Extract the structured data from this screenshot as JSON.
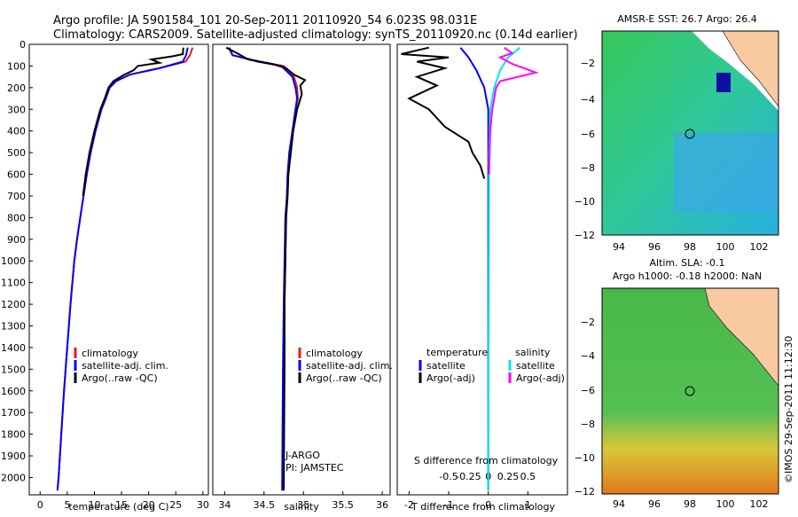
{
  "header": {
    "line1": "Argo profile: JA 5901584_101 20-Sep-2011 20110920_54 6.023S 98.031E",
    "line2": "Climatology: CARS2009. Satellite-adjusted climatology: synTS_20110920.nc (0.14d earlier)"
  },
  "map_top": {
    "title": "AMSR-E SST: 26.7  Argo: 26.4"
  },
  "map_bottom": {
    "title1": "Altim. SLA: -0.1",
    "title2": "Argo h1000: -0.18 h2000: NaN"
  },
  "credit": "©IMOS 29-Sep-2011 11:12:30",
  "colors": {
    "climatology": "#e41a1c",
    "satellite": "#0000ff",
    "argo": "#000000",
    "sat_s": "#00e5ee",
    "argo_s": "#ff00ff"
  },
  "chart_data": [
    {
      "type": "line",
      "xlabel": "temperature (deg C)",
      "ylabel": "",
      "xlim": [
        -2,
        31
      ],
      "ylim": [
        2080,
        0
      ],
      "xticks": [
        "0",
        "5",
        "10",
        "15",
        "20",
        "25",
        "30"
      ],
      "yticks": [
        "0",
        "100",
        "200",
        "300",
        "400",
        "500",
        "600",
        "700",
        "800",
        "900",
        "1000",
        "1100",
        "1200",
        "1300",
        "1400",
        "1500",
        "1600",
        "1700",
        "1800",
        "1900",
        "2000"
      ],
      "legend": [
        "climatology",
        "satellite-adj. clim.",
        "Argo(..raw -QC)"
      ],
      "series": [
        {
          "name": "climatology",
          "color": "#e41a1c",
          "points": [
            [
              28.1,
              15
            ],
            [
              27.6,
              50
            ],
            [
              26.8,
              80
            ],
            [
              22,
              110
            ],
            [
              16.5,
              140
            ],
            [
              14,
              170
            ],
            [
              12.8,
              200
            ],
            [
              12.1,
              250
            ],
            [
              11.3,
              300
            ],
            [
              10.2,
              400
            ],
            [
              9.3,
              500
            ],
            [
              8.6,
              600
            ],
            [
              8.0,
              700
            ],
            [
              7.4,
              800
            ],
            [
              6.8,
              900
            ],
            [
              6.3,
              1000
            ],
            [
              5.6,
              1200
            ],
            [
              5.0,
              1400
            ],
            [
              4.4,
              1600
            ],
            [
              3.9,
              1800
            ],
            [
              3.4,
              2000
            ],
            [
              3.2,
              2060
            ]
          ]
        },
        {
          "name": "satellite-adj. clim.",
          "color": "#0000ff",
          "points": [
            [
              27.2,
              15
            ],
            [
              26.9,
              50
            ],
            [
              26.3,
              80
            ],
            [
              22,
              110
            ],
            [
              16.5,
              140
            ],
            [
              14,
              170
            ],
            [
              12.8,
              200
            ],
            [
              12.1,
              250
            ],
            [
              11.3,
              300
            ],
            [
              10.2,
              400
            ],
            [
              9.3,
              500
            ],
            [
              8.6,
              600
            ],
            [
              8.0,
              700
            ],
            [
              7.4,
              800
            ],
            [
              6.8,
              900
            ],
            [
              6.3,
              1000
            ],
            [
              5.6,
              1200
            ],
            [
              5.0,
              1400
            ],
            [
              4.4,
              1600
            ],
            [
              3.9,
              1800
            ],
            [
              3.4,
              2000
            ],
            [
              3.2,
              2060
            ]
          ]
        },
        {
          "name": "Argo(..raw -QC)",
          "color": "#000000",
          "points": [
            [
              26.4,
              15
            ],
            [
              26.3,
              45
            ],
            [
              24.5,
              55
            ],
            [
              20.5,
              70
            ],
            [
              22,
              85
            ],
            [
              18,
              100
            ],
            [
              17.2,
              120
            ],
            [
              15.5,
              140
            ],
            [
              13.5,
              170
            ],
            [
              12.6,
              200
            ],
            [
              11.9,
              250
            ],
            [
              11.1,
              300
            ],
            [
              10.0,
              400
            ],
            [
              9.1,
              500
            ],
            [
              8.4,
              600
            ],
            [
              7.9,
              700
            ]
          ]
        }
      ]
    },
    {
      "type": "line",
      "xlabel": "salinity",
      "ylabel": "",
      "xlim": [
        33.85,
        36.1
      ],
      "ylim": [
        2080,
        0
      ],
      "xticks": [
        "34",
        "34.5",
        "35",
        "35.5",
        "36"
      ],
      "legend": [
        "climatology",
        "satellite-adj. clim.",
        "Argo(..raw -QC)"
      ],
      "annotations": [
        "J-ARGO",
        "PI: JAMSTEC"
      ],
      "series": [
        {
          "name": "climatology",
          "color": "#e41a1c",
          "points": [
            [
              34.05,
              15
            ],
            [
              34.1,
              50
            ],
            [
              34.45,
              80
            ],
            [
              34.75,
              100
            ],
            [
              34.88,
              150
            ],
            [
              34.92,
              200
            ],
            [
              34.93,
              250
            ],
            [
              34.9,
              300
            ],
            [
              34.86,
              400
            ],
            [
              34.83,
              500
            ],
            [
              34.8,
              600
            ],
            [
              34.79,
              700
            ],
            [
              34.78,
              800
            ],
            [
              34.77,
              1000
            ],
            [
              34.76,
              1200
            ],
            [
              34.75,
              1500
            ],
            [
              34.74,
              2060
            ]
          ]
        },
        {
          "name": "satellite-adj. clim.",
          "color": "#0000ff",
          "points": [
            [
              34.06,
              15
            ],
            [
              34.1,
              50
            ],
            [
              34.42,
              80
            ],
            [
              34.72,
              100
            ],
            [
              34.86,
              150
            ],
            [
              34.9,
              200
            ],
            [
              34.92,
              250
            ],
            [
              34.9,
              300
            ],
            [
              34.86,
              400
            ],
            [
              34.82,
              500
            ],
            [
              34.8,
              600
            ],
            [
              34.79,
              700
            ],
            [
              34.77,
              800
            ],
            [
              34.76,
              1000
            ],
            [
              34.75,
              1200
            ],
            [
              34.74,
              1500
            ],
            [
              34.73,
              2060
            ]
          ]
        },
        {
          "name": "Argo(..raw -QC)",
          "color": "#000000",
          "points": [
            [
              34.02,
              15
            ],
            [
              34.18,
              45
            ],
            [
              34.3,
              70
            ],
            [
              34.6,
              90
            ],
            [
              34.78,
              110
            ],
            [
              34.88,
              140
            ],
            [
              35.02,
              165
            ],
            [
              34.96,
              190
            ],
            [
              34.98,
              230
            ],
            [
              34.92,
              300
            ],
            [
              34.87,
              400
            ],
            [
              34.84,
              500
            ],
            [
              34.81,
              600
            ],
            [
              34.8,
              700
            ],
            [
              34.78,
              800
            ],
            [
              34.77,
              1000
            ],
            [
              34.76,
              1200
            ],
            [
              34.76,
              1500
            ],
            [
              34.75,
              2060
            ]
          ]
        }
      ]
    },
    {
      "type": "line",
      "xlabel": "T difference from climatology",
      "xlabel2": "S difference from climatology",
      "xlim": [
        -2.3,
        2.0
      ],
      "ylim": [
        2080,
        0
      ],
      "xticks": [
        "-2",
        "-1",
        "0",
        "1"
      ],
      "xticks2": [
        "-0.5",
        "-0.25",
        "0",
        "0.25",
        "0.5"
      ],
      "legend_temperature": [
        "temperature",
        "satellite",
        "Argo(-adj)"
      ],
      "legend_salinity": [
        "salinity",
        "satellite",
        "Argo(-adj)"
      ],
      "series": [
        {
          "name": "satellite",
          "color": "#0000ff",
          "points": [
            [
              -0.7,
              15
            ],
            [
              -0.5,
              60
            ],
            [
              -0.3,
              120
            ],
            [
              -0.1,
              200
            ],
            [
              0,
              300
            ],
            [
              0,
              2060
            ]
          ]
        },
        {
          "name": "Argo(-adj)",
          "color": "#000000",
          "points": [
            [
              -1.5,
              15
            ],
            [
              -2.2,
              45
            ],
            [
              -1.0,
              60
            ],
            [
              -1.8,
              80
            ],
            [
              -1.1,
              110
            ],
            [
              -1.8,
              150
            ],
            [
              -1.3,
              190
            ],
            [
              -2.0,
              250
            ],
            [
              -1.5,
              300
            ],
            [
              -1.1,
              380
            ],
            [
              -0.5,
              450
            ],
            [
              -0.4,
              500
            ],
            [
              -0.2,
              560
            ],
            [
              -0.1,
              620
            ]
          ]
        },
        {
          "name": "satellite",
          "color": "#00e5ee",
          "points": [
            [
              0.8,
              15
            ],
            [
              0.5,
              60
            ],
            [
              0.3,
              120
            ],
            [
              0.15,
              200
            ],
            [
              0.05,
              300
            ],
            [
              0.02,
              500
            ],
            [
              0,
              2060
            ]
          ]
        },
        {
          "name": "Argo(-adj)",
          "color": "#ff00ff",
          "points": [
            [
              0.4,
              15
            ],
            [
              0.6,
              40
            ],
            [
              0.3,
              60
            ],
            [
              0.6,
              90
            ],
            [
              1.2,
              130
            ],
            [
              0.3,
              170
            ],
            [
              0.2,
              200
            ],
            [
              0.1,
              300
            ],
            [
              0.05,
              400
            ],
            [
              0.02,
              600
            ]
          ]
        }
      ]
    }
  ]
}
